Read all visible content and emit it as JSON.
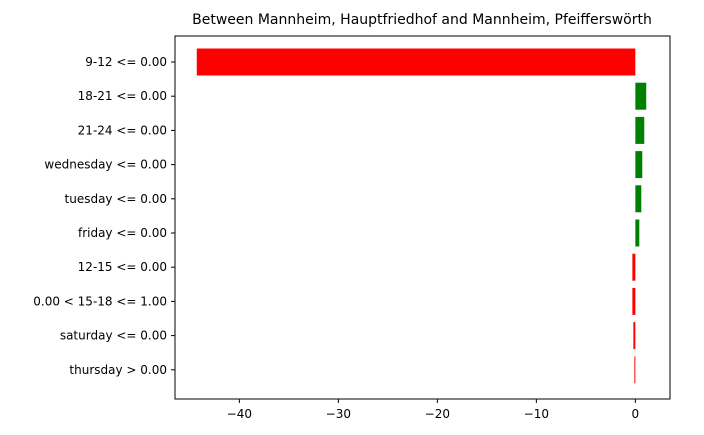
{
  "chart_data": {
    "type": "bar",
    "orientation": "horizontal",
    "title": "Between Mannheim, Hauptfriedhof and Mannheim, Pfeifferswörth",
    "xlabel": "",
    "ylabel": "",
    "xlim": [
      -46.5,
      3.5
    ],
    "xticks": [
      -40,
      -30,
      -20,
      -10,
      0
    ],
    "xtick_labels": [
      "−40",
      "−30",
      "−20",
      "−10",
      "0"
    ],
    "grid": false,
    "colors": {
      "positive": "#008000",
      "negative": "#ff0000"
    },
    "categories": [
      "9-12 <= 0.00",
      "18-21 <= 0.00",
      "21-24 <= 0.00",
      "wednesday <= 0.00",
      "tuesday <= 0.00",
      "friday <= 0.00",
      "12-15 <= 0.00",
      "0.00 < 15-18 <= 1.00",
      "saturday <= 0.00",
      "thursday > 0.00"
    ],
    "values": [
      -44.3,
      1.1,
      0.9,
      0.7,
      0.6,
      0.4,
      -0.3,
      -0.3,
      -0.2,
      -0.1
    ]
  }
}
